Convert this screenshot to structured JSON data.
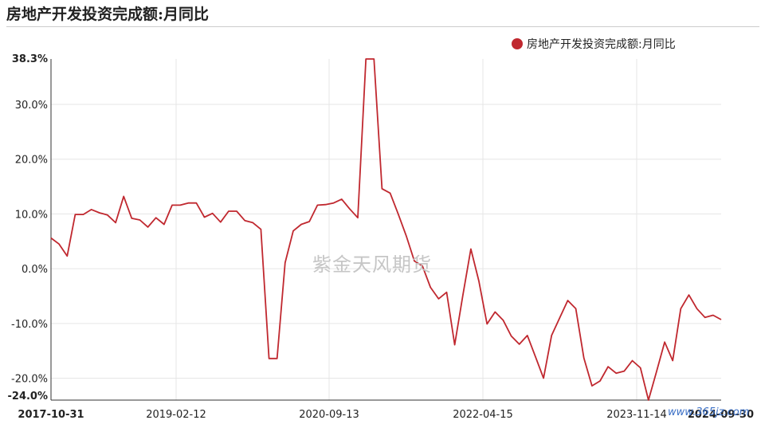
{
  "title": "房地产开发投资完成额:月同比",
  "watermark": "紫金天风期货",
  "watermark_site": "www.365jz.com",
  "chart_data": {
    "type": "line",
    "title": "房地产开发投资完成额:月同比",
    "xlabel": "",
    "ylabel": "",
    "legend": {
      "position": "top-right",
      "entries": [
        "房地产开发投资完成额:月同比"
      ]
    },
    "grid": true,
    "ylim": [
      -24.0,
      38.3
    ],
    "y_ticks": [
      -24.0,
      -20.0,
      -10.0,
      0.0,
      10.0,
      20.0,
      30.0,
      38.3
    ],
    "y_tick_labels": [
      "-24.0%",
      "-20.0%",
      "-10.0%",
      "0.0%",
      "10.0%",
      "20.0%",
      "30.0%",
      "38.3%"
    ],
    "y_tick_bold": [
      "-24.0%",
      "38.3%"
    ],
    "x_tick_labels": [
      "2017-10-31",
      "2019-02-12",
      "2020-09-13",
      "2022-04-15",
      "2023-11-14",
      "2024-09-30"
    ],
    "x_tick_bold": [
      "2017-10-31",
      "2024-09-30"
    ],
    "color": "#c0282f",
    "series": [
      {
        "name": "房地产开发投资完成额:月同比",
        "values": [
          5.6,
          4.5,
          2.3,
          9.9,
          9.9,
          10.8,
          10.2,
          9.8,
          8.4,
          13.2,
          9.2,
          8.9,
          7.6,
          9.3,
          8.1,
          11.6,
          11.6,
          12.0,
          12.0,
          9.4,
          10.1,
          8.5,
          10.5,
          10.5,
          8.8,
          8.4,
          7.2,
          -16.4,
          -16.4,
          1.1,
          6.9,
          8.1,
          8.6,
          11.6,
          11.7,
          12.0,
          12.7,
          10.9,
          9.3,
          38.3,
          38.3,
          14.6,
          13.8,
          10.0,
          6.0,
          1.4,
          0.5,
          -3.4,
          -5.5,
          -4.3,
          -13.9,
          -4.9,
          3.6,
          -2.3,
          -10.1,
          -7.9,
          -9.4,
          -12.3,
          -13.8,
          -12.2,
          -16.1,
          -20.0,
          -12.2,
          -9.0,
          -5.8,
          -7.3,
          -16.3,
          -21.4,
          -20.5,
          -17.9,
          -19.1,
          -18.7,
          -16.8,
          -18.1,
          -24.0,
          -18.8,
          -13.4,
          -16.8,
          -7.3,
          -4.8,
          -7.3,
          -8.9,
          -8.5,
          -9.3
        ]
      }
    ]
  }
}
